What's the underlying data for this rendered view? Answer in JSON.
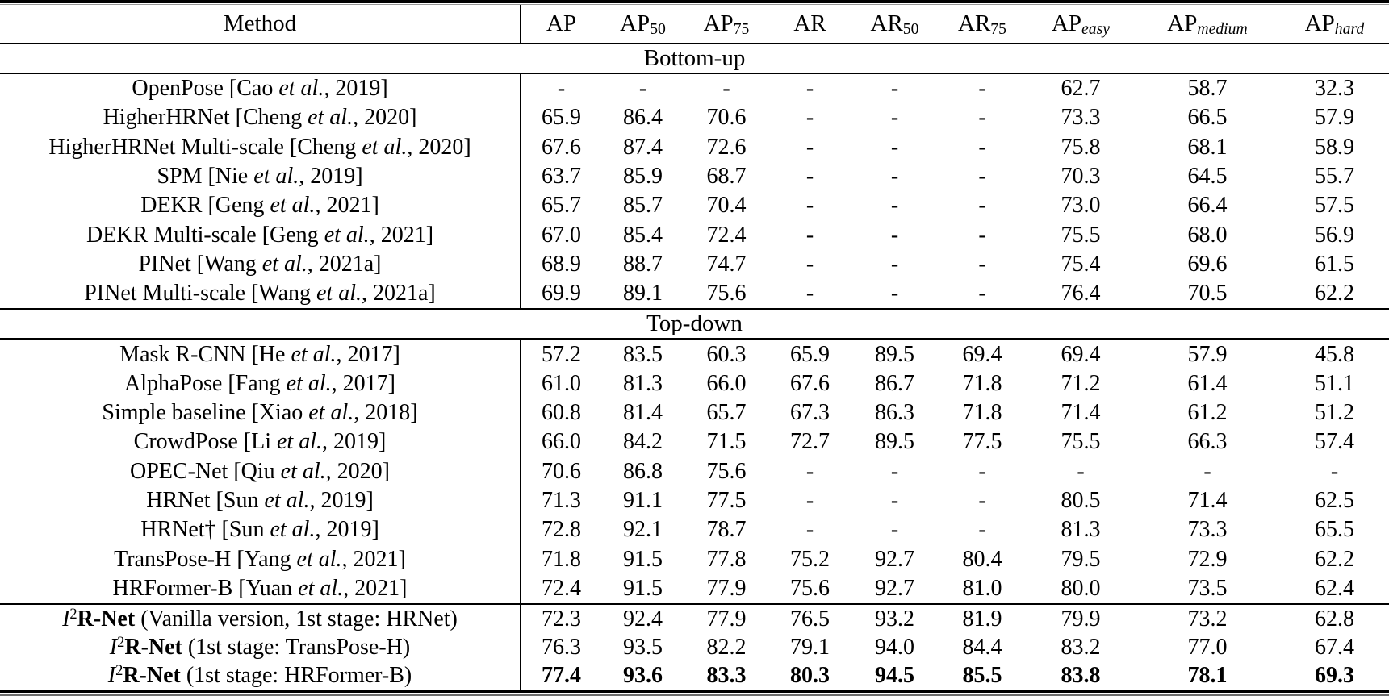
{
  "table": {
    "columns": [
      {
        "name": "method",
        "segments": [
          {
            "t": "Method"
          }
        ]
      },
      {
        "name": "ap",
        "segments": [
          {
            "t": "AP"
          }
        ]
      },
      {
        "name": "ap50",
        "segments": [
          {
            "t": "AP"
          },
          {
            "t": "50",
            "s": "sub"
          }
        ]
      },
      {
        "name": "ap75",
        "segments": [
          {
            "t": "AP"
          },
          {
            "t": "75",
            "s": "sub"
          }
        ]
      },
      {
        "name": "ar",
        "segments": [
          {
            "t": "AR"
          }
        ]
      },
      {
        "name": "ar50",
        "segments": [
          {
            "t": "AR"
          },
          {
            "t": "50",
            "s": "sub"
          }
        ]
      },
      {
        "name": "ar75",
        "segments": [
          {
            "t": "AR"
          },
          {
            "t": "75",
            "s": "sub"
          }
        ]
      },
      {
        "name": "ap-easy",
        "segments": [
          {
            "t": "AP"
          },
          {
            "t": "easy",
            "s": "subi"
          }
        ]
      },
      {
        "name": "ap-medium",
        "segments": [
          {
            "t": "AP"
          },
          {
            "t": "medium",
            "s": "subi"
          }
        ]
      },
      {
        "name": "ap-hard",
        "segments": [
          {
            "t": "AP"
          },
          {
            "t": "hard",
            "s": "subi"
          }
        ]
      }
    ],
    "sections": [
      {
        "title": "Bottom-up",
        "rows": [
          {
            "method": [
              {
                "t": "OpenPose [Cao "
              },
              {
                "t": "et al.",
                "s": "i"
              },
              {
                "t": ", 2019]"
              }
            ],
            "values": [
              "-",
              "-",
              "-",
              "-",
              "-",
              "-",
              "62.7",
              "58.7",
              "32.3"
            ]
          },
          {
            "method": [
              {
                "t": "HigherHRNet [Cheng "
              },
              {
                "t": "et al.",
                "s": "i"
              },
              {
                "t": ", 2020]"
              }
            ],
            "values": [
              "65.9",
              "86.4",
              "70.6",
              "-",
              "-",
              "-",
              "73.3",
              "66.5",
              "57.9"
            ]
          },
          {
            "method": [
              {
                "t": "HigherHRNet Multi-scale [Cheng "
              },
              {
                "t": "et al.",
                "s": "i"
              },
              {
                "t": ", 2020]"
              }
            ],
            "values": [
              "67.6",
              "87.4",
              "72.6",
              "-",
              "-",
              "-",
              "75.8",
              "68.1",
              "58.9"
            ]
          },
          {
            "method": [
              {
                "t": "SPM [Nie "
              },
              {
                "t": "et al.",
                "s": "i"
              },
              {
                "t": ", 2019]"
              }
            ],
            "values": [
              "63.7",
              "85.9",
              "68.7",
              "-",
              "-",
              "-",
              "70.3",
              "64.5",
              "55.7"
            ]
          },
          {
            "method": [
              {
                "t": "DEKR [Geng "
              },
              {
                "t": "et al.",
                "s": "i"
              },
              {
                "t": ", 2021]"
              }
            ],
            "values": [
              "65.7",
              "85.7",
              "70.4",
              "-",
              "-",
              "-",
              "73.0",
              "66.4",
              "57.5"
            ]
          },
          {
            "method": [
              {
                "t": "DEKR Multi-scale [Geng "
              },
              {
                "t": "et al.",
                "s": "i"
              },
              {
                "t": ", 2021]"
              }
            ],
            "values": [
              "67.0",
              "85.4",
              "72.4",
              "-",
              "-",
              "-",
              "75.5",
              "68.0",
              "56.9"
            ]
          },
          {
            "method": [
              {
                "t": "PINet [Wang "
              },
              {
                "t": "et al.",
                "s": "i"
              },
              {
                "t": ", 2021a]"
              }
            ],
            "values": [
              "68.9",
              "88.7",
              "74.7",
              "-",
              "-",
              "-",
              "75.4",
              "69.6",
              "61.5"
            ]
          },
          {
            "method": [
              {
                "t": "PINet Multi-scale [Wang "
              },
              {
                "t": "et al.",
                "s": "i"
              },
              {
                "t": ", 2021a]"
              }
            ],
            "values": [
              "69.9",
              "89.1",
              "75.6",
              "-",
              "-",
              "-",
              "76.4",
              "70.5",
              "62.2"
            ]
          }
        ]
      },
      {
        "title": "Top-down",
        "rows": [
          {
            "method": [
              {
                "t": "Mask R-CNN [He "
              },
              {
                "t": "et al.",
                "s": "i"
              },
              {
                "t": ", 2017]"
              }
            ],
            "values": [
              "57.2",
              "83.5",
              "60.3",
              "65.9",
              "89.5",
              "69.4",
              "69.4",
              "57.9",
              "45.8"
            ]
          },
          {
            "method": [
              {
                "t": "AlphaPose [Fang "
              },
              {
                "t": "et al.",
                "s": "i"
              },
              {
                "t": ", 2017]"
              }
            ],
            "values": [
              "61.0",
              "81.3",
              "66.0",
              "67.6",
              "86.7",
              "71.8",
              "71.2",
              "61.4",
              "51.1"
            ]
          },
          {
            "method": [
              {
                "t": "Simple baseline [Xiao "
              },
              {
                "t": "et al.",
                "s": "i"
              },
              {
                "t": ", 2018]"
              }
            ],
            "values": [
              "60.8",
              "81.4",
              "65.7",
              "67.3",
              "86.3",
              "71.8",
              "71.4",
              "61.2",
              "51.2"
            ]
          },
          {
            "method": [
              {
                "t": "CrowdPose [Li "
              },
              {
                "t": "et al.",
                "s": "i"
              },
              {
                "t": ", 2019]"
              }
            ],
            "values": [
              "66.0",
              "84.2",
              "71.5",
              "72.7",
              "89.5",
              "77.5",
              "75.5",
              "66.3",
              "57.4"
            ]
          },
          {
            "method": [
              {
                "t": "OPEC-Net [Qiu "
              },
              {
                "t": "et al.",
                "s": "i"
              },
              {
                "t": ", 2020]"
              }
            ],
            "values": [
              "70.6",
              "86.8",
              "75.6",
              "-",
              "-",
              "-",
              "-",
              "-",
              "-"
            ]
          },
          {
            "method": [
              {
                "t": "HRNet [Sun "
              },
              {
                "t": "et al.",
                "s": "i"
              },
              {
                "t": ", 2019]"
              }
            ],
            "values": [
              "71.3",
              "91.1",
              "77.5",
              "-",
              "-",
              "-",
              "80.5",
              "71.4",
              "62.5"
            ]
          },
          {
            "method": [
              {
                "t": "HRNet† [Sun "
              },
              {
                "t": "et al.",
                "s": "i"
              },
              {
                "t": ", 2019]"
              }
            ],
            "values": [
              "72.8",
              "92.1",
              "78.7",
              "-",
              "-",
              "-",
              "81.3",
              "73.3",
              "65.5"
            ]
          },
          {
            "method": [
              {
                "t": "TransPose-H [Yang "
              },
              {
                "t": "et al.",
                "s": "i"
              },
              {
                "t": ", 2021]"
              }
            ],
            "values": [
              "71.8",
              "91.5",
              "77.8",
              "75.2",
              "92.7",
              "80.4",
              "79.5",
              "72.9",
              "62.2"
            ]
          },
          {
            "method": [
              {
                "t": "HRFormer-B [Yuan "
              },
              {
                "t": "et al.",
                "s": "i"
              },
              {
                "t": ", 2021]"
              }
            ],
            "values": [
              "72.4",
              "91.5",
              "77.9",
              "75.6",
              "92.7",
              "81.0",
              "80.0",
              "73.5",
              "62.4"
            ]
          }
        ]
      },
      {
        "title": null,
        "divider_top": true,
        "ours": true,
        "rows": [
          {
            "method": [
              {
                "t": "I",
                "s": "i"
              },
              {
                "t": "2",
                "s": "sup"
              },
              {
                "t": "R-Net",
                "s": "b"
              },
              {
                "t": " (Vanilla version, 1st stage: HRNet)"
              }
            ],
            "values": [
              "72.3",
              "92.4",
              "77.9",
              "76.5",
              "93.2",
              "81.9",
              "79.9",
              "73.2",
              "62.8"
            ]
          },
          {
            "method": [
              {
                "t": "I",
                "s": "i"
              },
              {
                "t": "2",
                "s": "sup"
              },
              {
                "t": "R-Net",
                "s": "b"
              },
              {
                "t": " (1st stage: TransPose-H)"
              }
            ],
            "values": [
              "76.3",
              "93.5",
              "82.2",
              "79.1",
              "94.0",
              "84.4",
              "83.2",
              "77.0",
              "67.4"
            ]
          },
          {
            "method": [
              {
                "t": "I",
                "s": "i"
              },
              {
                "t": "2",
                "s": "sup"
              },
              {
                "t": "R-Net",
                "s": "b"
              },
              {
                "t": " (1st stage: HRFormer-B)"
              }
            ],
            "bold": true,
            "values": [
              "77.4",
              "93.6",
              "83.3",
              "80.3",
              "94.5",
              "85.5",
              "83.8",
              "78.1",
              "69.3"
            ]
          }
        ]
      }
    ],
    "colors": {
      "text": "#000000",
      "background": "#ffffff",
      "rule": "#000000"
    }
  }
}
